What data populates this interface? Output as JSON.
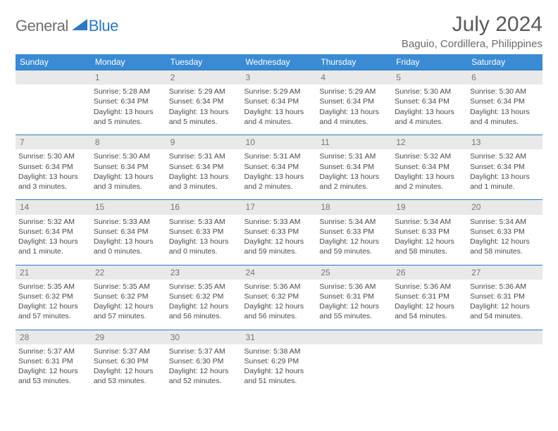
{
  "brand": {
    "part1": "General",
    "part2": "Blue",
    "triangle_color": "#2d77c2"
  },
  "title": "July 2024",
  "location": "Baguio, Cordillera, Philippines",
  "colors": {
    "header_bg": "#3a8bd4",
    "header_text": "#ffffff",
    "rule": "#2d77c2",
    "daynum_bg": "#e9e9e9",
    "daynum_text": "#777777",
    "body_text": "#4a4a4a"
  },
  "weekdays": [
    "Sunday",
    "Monday",
    "Tuesday",
    "Wednesday",
    "Thursday",
    "Friday",
    "Saturday"
  ],
  "weeks": [
    [
      {
        "n": "",
        "l1": "",
        "l2": "",
        "l3": "",
        "l4": ""
      },
      {
        "n": "1",
        "l1": "Sunrise: 5:28 AM",
        "l2": "Sunset: 6:34 PM",
        "l3": "Daylight: 13 hours",
        "l4": "and 5 minutes."
      },
      {
        "n": "2",
        "l1": "Sunrise: 5:29 AM",
        "l2": "Sunset: 6:34 PM",
        "l3": "Daylight: 13 hours",
        "l4": "and 5 minutes."
      },
      {
        "n": "3",
        "l1": "Sunrise: 5:29 AM",
        "l2": "Sunset: 6:34 PM",
        "l3": "Daylight: 13 hours",
        "l4": "and 4 minutes."
      },
      {
        "n": "4",
        "l1": "Sunrise: 5:29 AM",
        "l2": "Sunset: 6:34 PM",
        "l3": "Daylight: 13 hours",
        "l4": "and 4 minutes."
      },
      {
        "n": "5",
        "l1": "Sunrise: 5:30 AM",
        "l2": "Sunset: 6:34 PM",
        "l3": "Daylight: 13 hours",
        "l4": "and 4 minutes."
      },
      {
        "n": "6",
        "l1": "Sunrise: 5:30 AM",
        "l2": "Sunset: 6:34 PM",
        "l3": "Daylight: 13 hours",
        "l4": "and 4 minutes."
      }
    ],
    [
      {
        "n": "7",
        "l1": "Sunrise: 5:30 AM",
        "l2": "Sunset: 6:34 PM",
        "l3": "Daylight: 13 hours",
        "l4": "and 3 minutes."
      },
      {
        "n": "8",
        "l1": "Sunrise: 5:30 AM",
        "l2": "Sunset: 6:34 PM",
        "l3": "Daylight: 13 hours",
        "l4": "and 3 minutes."
      },
      {
        "n": "9",
        "l1": "Sunrise: 5:31 AM",
        "l2": "Sunset: 6:34 PM",
        "l3": "Daylight: 13 hours",
        "l4": "and 3 minutes."
      },
      {
        "n": "10",
        "l1": "Sunrise: 5:31 AM",
        "l2": "Sunset: 6:34 PM",
        "l3": "Daylight: 13 hours",
        "l4": "and 2 minutes."
      },
      {
        "n": "11",
        "l1": "Sunrise: 5:31 AM",
        "l2": "Sunset: 6:34 PM",
        "l3": "Daylight: 13 hours",
        "l4": "and 2 minutes."
      },
      {
        "n": "12",
        "l1": "Sunrise: 5:32 AM",
        "l2": "Sunset: 6:34 PM",
        "l3": "Daylight: 13 hours",
        "l4": "and 2 minutes."
      },
      {
        "n": "13",
        "l1": "Sunrise: 5:32 AM",
        "l2": "Sunset: 6:34 PM",
        "l3": "Daylight: 13 hours",
        "l4": "and 1 minute."
      }
    ],
    [
      {
        "n": "14",
        "l1": "Sunrise: 5:32 AM",
        "l2": "Sunset: 6:34 PM",
        "l3": "Daylight: 13 hours",
        "l4": "and 1 minute."
      },
      {
        "n": "15",
        "l1": "Sunrise: 5:33 AM",
        "l2": "Sunset: 6:34 PM",
        "l3": "Daylight: 13 hours",
        "l4": "and 0 minutes."
      },
      {
        "n": "16",
        "l1": "Sunrise: 5:33 AM",
        "l2": "Sunset: 6:33 PM",
        "l3": "Daylight: 13 hours",
        "l4": "and 0 minutes."
      },
      {
        "n": "17",
        "l1": "Sunrise: 5:33 AM",
        "l2": "Sunset: 6:33 PM",
        "l3": "Daylight: 12 hours",
        "l4": "and 59 minutes."
      },
      {
        "n": "18",
        "l1": "Sunrise: 5:34 AM",
        "l2": "Sunset: 6:33 PM",
        "l3": "Daylight: 12 hours",
        "l4": "and 59 minutes."
      },
      {
        "n": "19",
        "l1": "Sunrise: 5:34 AM",
        "l2": "Sunset: 6:33 PM",
        "l3": "Daylight: 12 hours",
        "l4": "and 58 minutes."
      },
      {
        "n": "20",
        "l1": "Sunrise: 5:34 AM",
        "l2": "Sunset: 6:33 PM",
        "l3": "Daylight: 12 hours",
        "l4": "and 58 minutes."
      }
    ],
    [
      {
        "n": "21",
        "l1": "Sunrise: 5:35 AM",
        "l2": "Sunset: 6:32 PM",
        "l3": "Daylight: 12 hours",
        "l4": "and 57 minutes."
      },
      {
        "n": "22",
        "l1": "Sunrise: 5:35 AM",
        "l2": "Sunset: 6:32 PM",
        "l3": "Daylight: 12 hours",
        "l4": "and 57 minutes."
      },
      {
        "n": "23",
        "l1": "Sunrise: 5:35 AM",
        "l2": "Sunset: 6:32 PM",
        "l3": "Daylight: 12 hours",
        "l4": "and 56 minutes."
      },
      {
        "n": "24",
        "l1": "Sunrise: 5:36 AM",
        "l2": "Sunset: 6:32 PM",
        "l3": "Daylight: 12 hours",
        "l4": "and 56 minutes."
      },
      {
        "n": "25",
        "l1": "Sunrise: 5:36 AM",
        "l2": "Sunset: 6:31 PM",
        "l3": "Daylight: 12 hours",
        "l4": "and 55 minutes."
      },
      {
        "n": "26",
        "l1": "Sunrise: 5:36 AM",
        "l2": "Sunset: 6:31 PM",
        "l3": "Daylight: 12 hours",
        "l4": "and 54 minutes."
      },
      {
        "n": "27",
        "l1": "Sunrise: 5:36 AM",
        "l2": "Sunset: 6:31 PM",
        "l3": "Daylight: 12 hours",
        "l4": "and 54 minutes."
      }
    ],
    [
      {
        "n": "28",
        "l1": "Sunrise: 5:37 AM",
        "l2": "Sunset: 6:31 PM",
        "l3": "Daylight: 12 hours",
        "l4": "and 53 minutes."
      },
      {
        "n": "29",
        "l1": "Sunrise: 5:37 AM",
        "l2": "Sunset: 6:30 PM",
        "l3": "Daylight: 12 hours",
        "l4": "and 53 minutes."
      },
      {
        "n": "30",
        "l1": "Sunrise: 5:37 AM",
        "l2": "Sunset: 6:30 PM",
        "l3": "Daylight: 12 hours",
        "l4": "and 52 minutes."
      },
      {
        "n": "31",
        "l1": "Sunrise: 5:38 AM",
        "l2": "Sunset: 6:29 PM",
        "l3": "Daylight: 12 hours",
        "l4": "and 51 minutes."
      },
      {
        "n": "",
        "l1": "",
        "l2": "",
        "l3": "",
        "l4": ""
      },
      {
        "n": "",
        "l1": "",
        "l2": "",
        "l3": "",
        "l4": ""
      },
      {
        "n": "",
        "l1": "",
        "l2": "",
        "l3": "",
        "l4": ""
      }
    ]
  ]
}
